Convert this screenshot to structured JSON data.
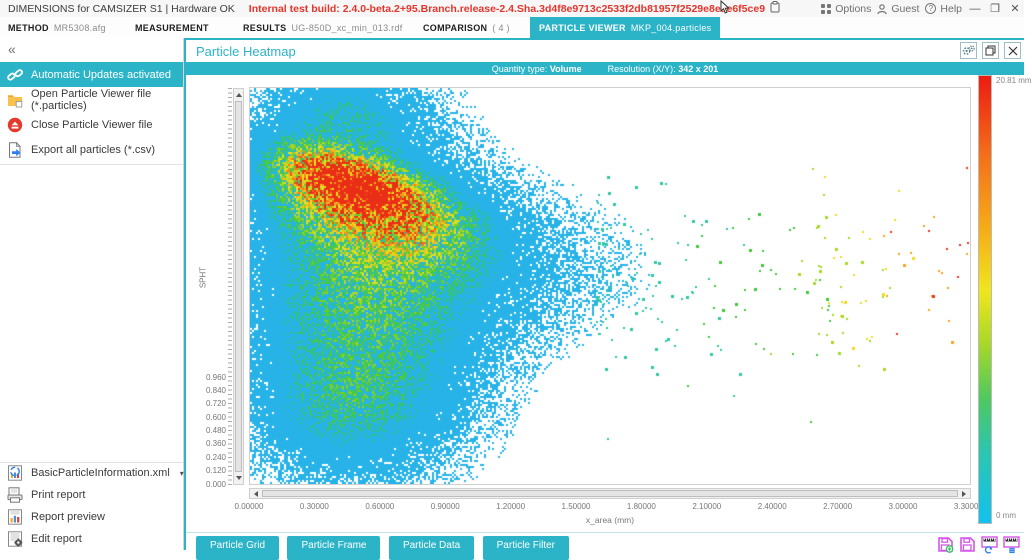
{
  "title_bar": {
    "app_title": "DIMENSIONS for CAMSIZER S1 | Hardware OK",
    "build_info": "Internal test build: 2.4.0-beta.2+95.Branch.release-2.4.Sha.3d4f8e9713c2533f2db81957f2529e8eae6f5ce9",
    "menu": {
      "options": "Options",
      "guest": "Guest",
      "help": "Help"
    },
    "window_controls": {
      "minimize": "—",
      "maximize": "❐",
      "close": "✕"
    }
  },
  "tabs": [
    {
      "label": "METHOD",
      "value": "MR5308.afg"
    },
    {
      "label": "MEASUREMENT",
      "value": ""
    },
    {
      "label": "RESULTS",
      "value": "UG-850D_xc_min_013.rdf"
    },
    {
      "label": "COMPARISON",
      "value": "( 4 )"
    },
    {
      "label": "PARTICLE VIEWER",
      "value": "MKP_004.particles"
    }
  ],
  "sidebar": {
    "collapse_glyph": "«",
    "items": [
      {
        "label": "Automatic Updates activated"
      },
      {
        "label": "Open Particle Viewer file (*.particles)"
      },
      {
        "label": "Close Particle Viewer file"
      },
      {
        "label": "Export all particles (*.csv)"
      }
    ],
    "report_items": [
      {
        "label": "BasicParticleInformation.xml",
        "caret": "▾"
      },
      {
        "label": "Print report"
      },
      {
        "label": "Report preview"
      },
      {
        "label": "Edit report"
      }
    ]
  },
  "panel": {
    "title": "Particle Heatmap",
    "info": {
      "quantity_label": "Quantity type:",
      "quantity_value": "Volume",
      "resolution_label": "Resolution (X/Y):",
      "resolution_value": "342 x 201"
    }
  },
  "bottom_bar": {
    "buttons": [
      "Particle Grid",
      "Particle Frame",
      "Particle Data",
      "Particle Filter"
    ]
  },
  "chart_data": {
    "type": "heatmap",
    "title": "Particle Heatmap",
    "xlabel": "x_area (mm)",
    "ylabel": "SPHT",
    "quantity_type": "Volume",
    "resolution_xy": "342 x 201",
    "x_ticks": [
      "0.00000",
      "0.30000",
      "0.60000",
      "0.90000",
      "1.20000",
      "1.50000",
      "1.80000",
      "2.10000",
      "2.40000",
      "2.70000",
      "3.00000",
      "3.30000"
    ],
    "y_ticks": [
      "0.000",
      "0.120",
      "0.240",
      "0.360",
      "0.480",
      "0.600",
      "0.720",
      "0.840",
      "0.960"
    ],
    "x_range_mm": [
      0,
      3.42
    ],
    "y_labeled_range": [
      0,
      0.96
    ],
    "grid": false,
    "colorbar": {
      "max_label": "20.81 mm",
      "min_label": "0 mm",
      "gradient_stops": [
        [
          0,
          "#ed1b10"
        ],
        [
          0.18,
          "#f4701a"
        ],
        [
          0.34,
          "#f6ab17"
        ],
        [
          0.48,
          "#f0e51f"
        ],
        [
          0.6,
          "#a8d827"
        ],
        [
          0.72,
          "#4fc95e"
        ],
        [
          0.84,
          "#2cc6b0"
        ],
        [
          1,
          "#12c1ee"
        ]
      ]
    },
    "render_model": {
      "seed": 1337,
      "cell": 2,
      "threshold": 0.045,
      "speckle_below": 0.105,
      "dropout": 0.55,
      "noise_base": 0.5,
      "noise_span": 1.0,
      "gaussians": [
        {
          "a": 0.34,
          "cx": 0.16,
          "cy": 0.55,
          "sx": 0.16,
          "sy": 0.36,
          "rot": 0
        },
        {
          "a": 0.1,
          "cx": 0.3,
          "cy": 0.45,
          "sx": 0.24,
          "sy": 0.2,
          "rot": 0
        },
        {
          "a": 0.5,
          "cx": 0.165,
          "cy": 0.3,
          "sx": 0.155,
          "sy": 0.095,
          "rot": 0.7
        },
        {
          "a": 0.95,
          "cx": 0.142,
          "cy": 0.245,
          "sx": 0.095,
          "sy": 0.048,
          "rot": 0.7
        },
        {
          "a": 0.22,
          "cx": 0.13,
          "cy": 0.07,
          "sx": 0.11,
          "sy": 0.12,
          "rot": 0
        },
        {
          "a": 0.15,
          "cx": 0.13,
          "cy": 0.82,
          "sx": 0.12,
          "sy": 0.14,
          "rot": 0
        }
      ],
      "colormap": [
        [
          0.045,
          "#27b3e8"
        ],
        [
          0.3,
          "#27b3e8"
        ],
        [
          0.38,
          "#30c47c"
        ],
        [
          0.46,
          "#52cb33"
        ],
        [
          0.56,
          "#aad627"
        ],
        [
          0.66,
          "#f0e41e"
        ],
        [
          0.78,
          "#f6a41a"
        ],
        [
          0.88,
          "#f2641c"
        ],
        [
          1,
          "#e92d16"
        ]
      ],
      "tail": {
        "clusters": [
          {
            "count": 170,
            "x_base": 0.48,
            "x_spread": 0.42,
            "x_pow": 1.5,
            "y_center": 0.5,
            "y_sigma": 0.13
          },
          {
            "count": 48,
            "x_base": 0.78,
            "x_spread": 0.23,
            "x_pow": 1.0,
            "y_center": 0.46,
            "y_sigma": 0.105
          }
        ],
        "color_ramp": [
          [
            0.34,
            "#2fc7a4"
          ],
          [
            0.56,
            "#3fc83a"
          ],
          [
            0.7,
            "#a8d827"
          ],
          [
            0.82,
            "#f0dc1e"
          ],
          [
            0.9,
            "#f6a41a"
          ],
          [
            2,
            "#e8371a"
          ]
        ]
      }
    }
  }
}
